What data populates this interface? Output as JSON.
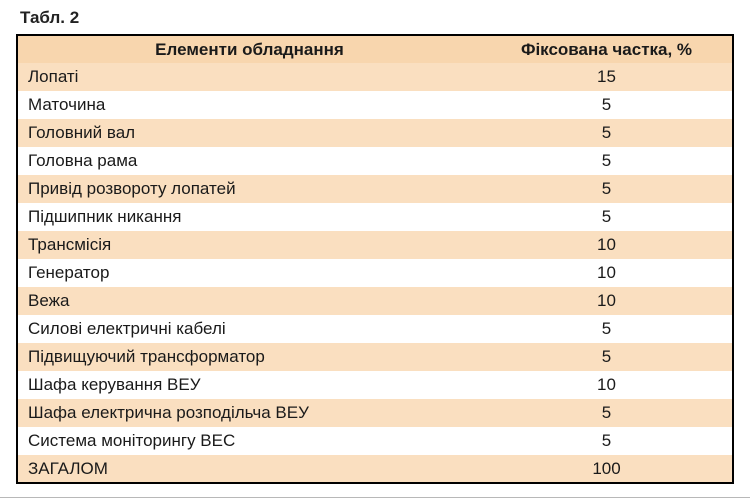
{
  "page_title": "Табл. 2",
  "table": {
    "headers": [
      "Елементи обладнання",
      "Фіксована частка, %"
    ],
    "rows": [
      {
        "label": "Лопаті",
        "value": "15"
      },
      {
        "label": "Маточина",
        "value": "5"
      },
      {
        "label": "Головний вал",
        "value": "5"
      },
      {
        "label": "Головна рама",
        "value": "5"
      },
      {
        "label": "Привід розвороту лопатей",
        "value": "5"
      },
      {
        "label": "Підшипник никання",
        "value": "5"
      },
      {
        "label": "Трансмісія",
        "value": "10"
      },
      {
        "label": "Генератор",
        "value": "10"
      },
      {
        "label": "Вежа",
        "value": "10"
      },
      {
        "label": "Силові електричні кабелі",
        "value": "5"
      },
      {
        "label": "Підвищуючий трансформатор",
        "value": "5"
      },
      {
        "label": "Шафа керування ВЕУ",
        "value": "10"
      },
      {
        "label": "Шафа електрична розподільча ВЕУ",
        "value": "5"
      },
      {
        "label": "Система моніторингу ВЕС",
        "value": "5"
      },
      {
        "label": "ЗАГАЛОМ",
        "value": "100"
      }
    ],
    "colors": {
      "header_bg": "#f8d6ae",
      "shaded_row_bg": "#fadfc0",
      "border": "#000000",
      "text": "#1a1a1a"
    }
  }
}
